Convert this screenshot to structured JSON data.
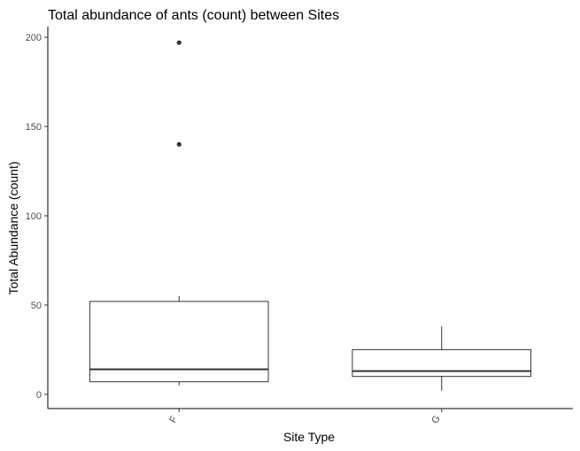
{
  "chart_data": {
    "type": "boxplot",
    "title": "Total abundance of ants (count) between Sites",
    "xlabel": "Site Type",
    "ylabel": "Total Abundance (count)",
    "categories": [
      "F",
      "G"
    ],
    "yticks": [
      0,
      50,
      100,
      150,
      200
    ],
    "ylim": [
      -8,
      206
    ],
    "grid": false,
    "boxes": [
      {
        "category": "F",
        "min": 5,
        "q1": 7,
        "median": 14,
        "q3": 52,
        "max": 55,
        "outliers": [
          140,
          197
        ]
      },
      {
        "category": "G",
        "min": 2,
        "q1": 10,
        "median": 13,
        "q3": 25,
        "max": 38,
        "outliers": []
      }
    ],
    "colors": {
      "box_fill": "#ffffff",
      "box_stroke": "#333333",
      "axis": "#000000",
      "outlier": "#333333"
    }
  }
}
